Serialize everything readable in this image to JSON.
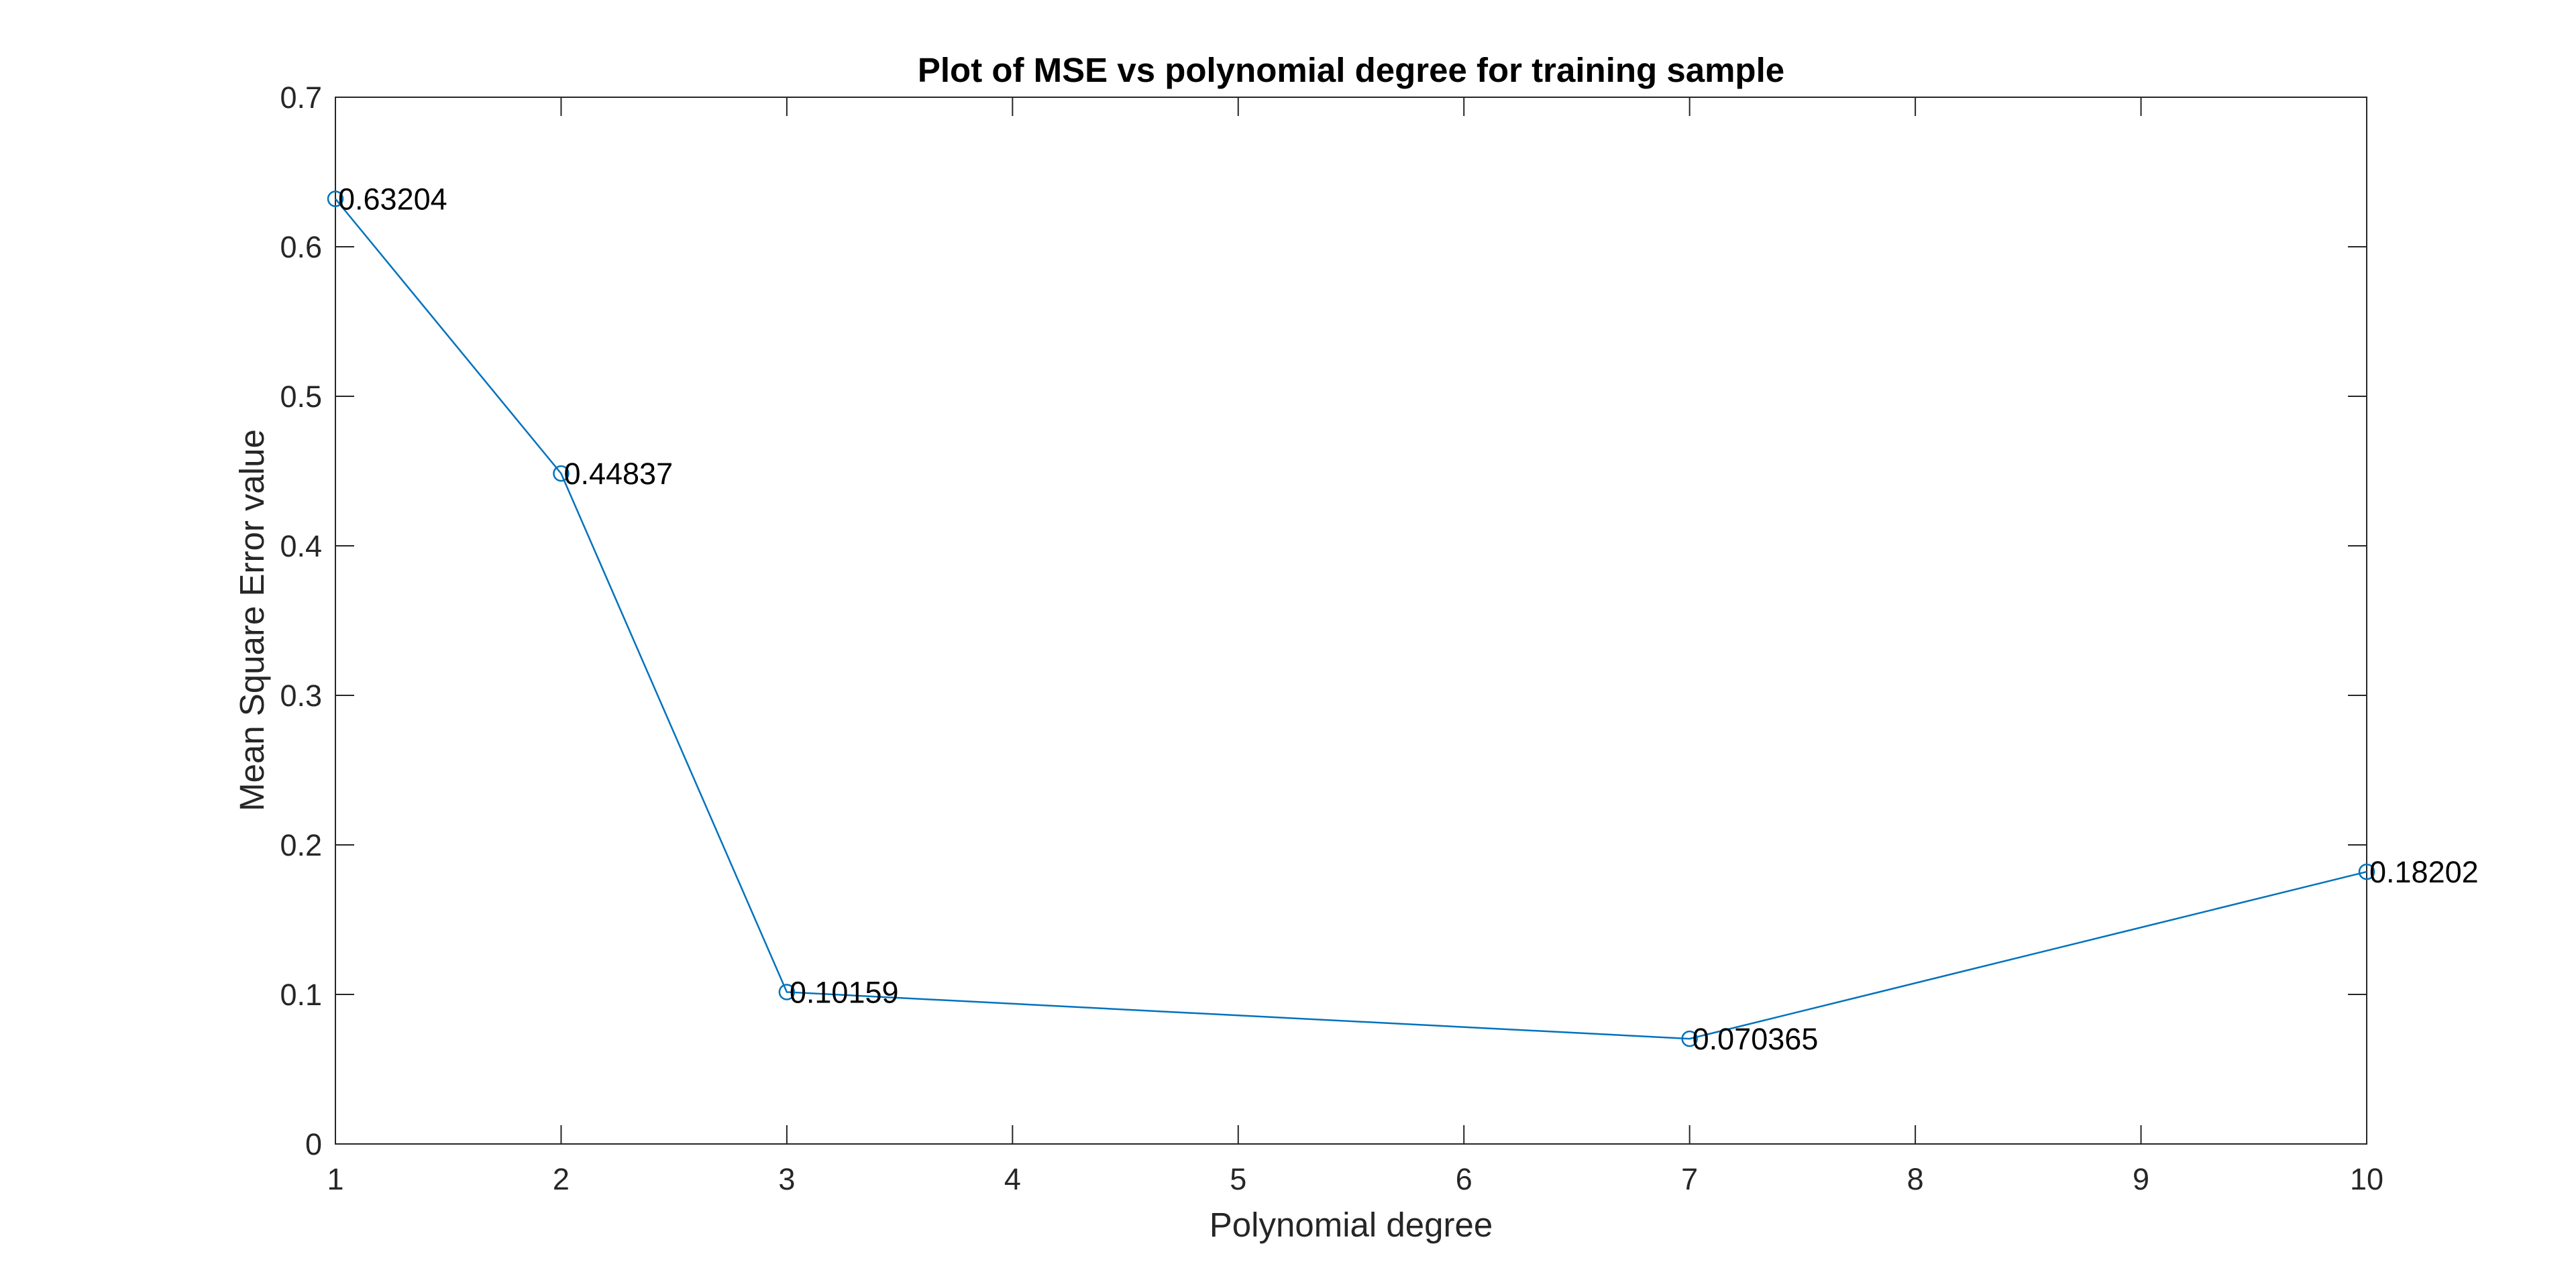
{
  "chart_data": {
    "type": "line",
    "title": "Plot of MSE vs polynomial degree for training sample",
    "xlabel": "Polynomial degree",
    "ylabel": "Mean Square Error value",
    "x_tick_labels": [
      "1",
      "2",
      "3",
      "4",
      "5",
      "6",
      "7",
      "8",
      "9",
      "10"
    ],
    "y_tick_labels": [
      "0",
      "0.1",
      "0.2",
      "0.3",
      "0.4",
      "0.5",
      "0.6",
      "0.7"
    ],
    "xlim": [
      1,
      10
    ],
    "ylim": [
      0,
      0.7
    ],
    "grid": false,
    "marker": "circle",
    "colors": {
      "series": "#0072BD",
      "axis": "#262626",
      "background": "#ffffff"
    },
    "series": [
      {
        "x": [
          1,
          2,
          3,
          7,
          10
        ],
        "values": [
          0.63204,
          0.44837,
          0.10159,
          0.070365,
          0.18202
        ],
        "point_labels": [
          "0.63204",
          "0.44837",
          "0.10159",
          "0.070365",
          "0.18202"
        ]
      }
    ]
  }
}
